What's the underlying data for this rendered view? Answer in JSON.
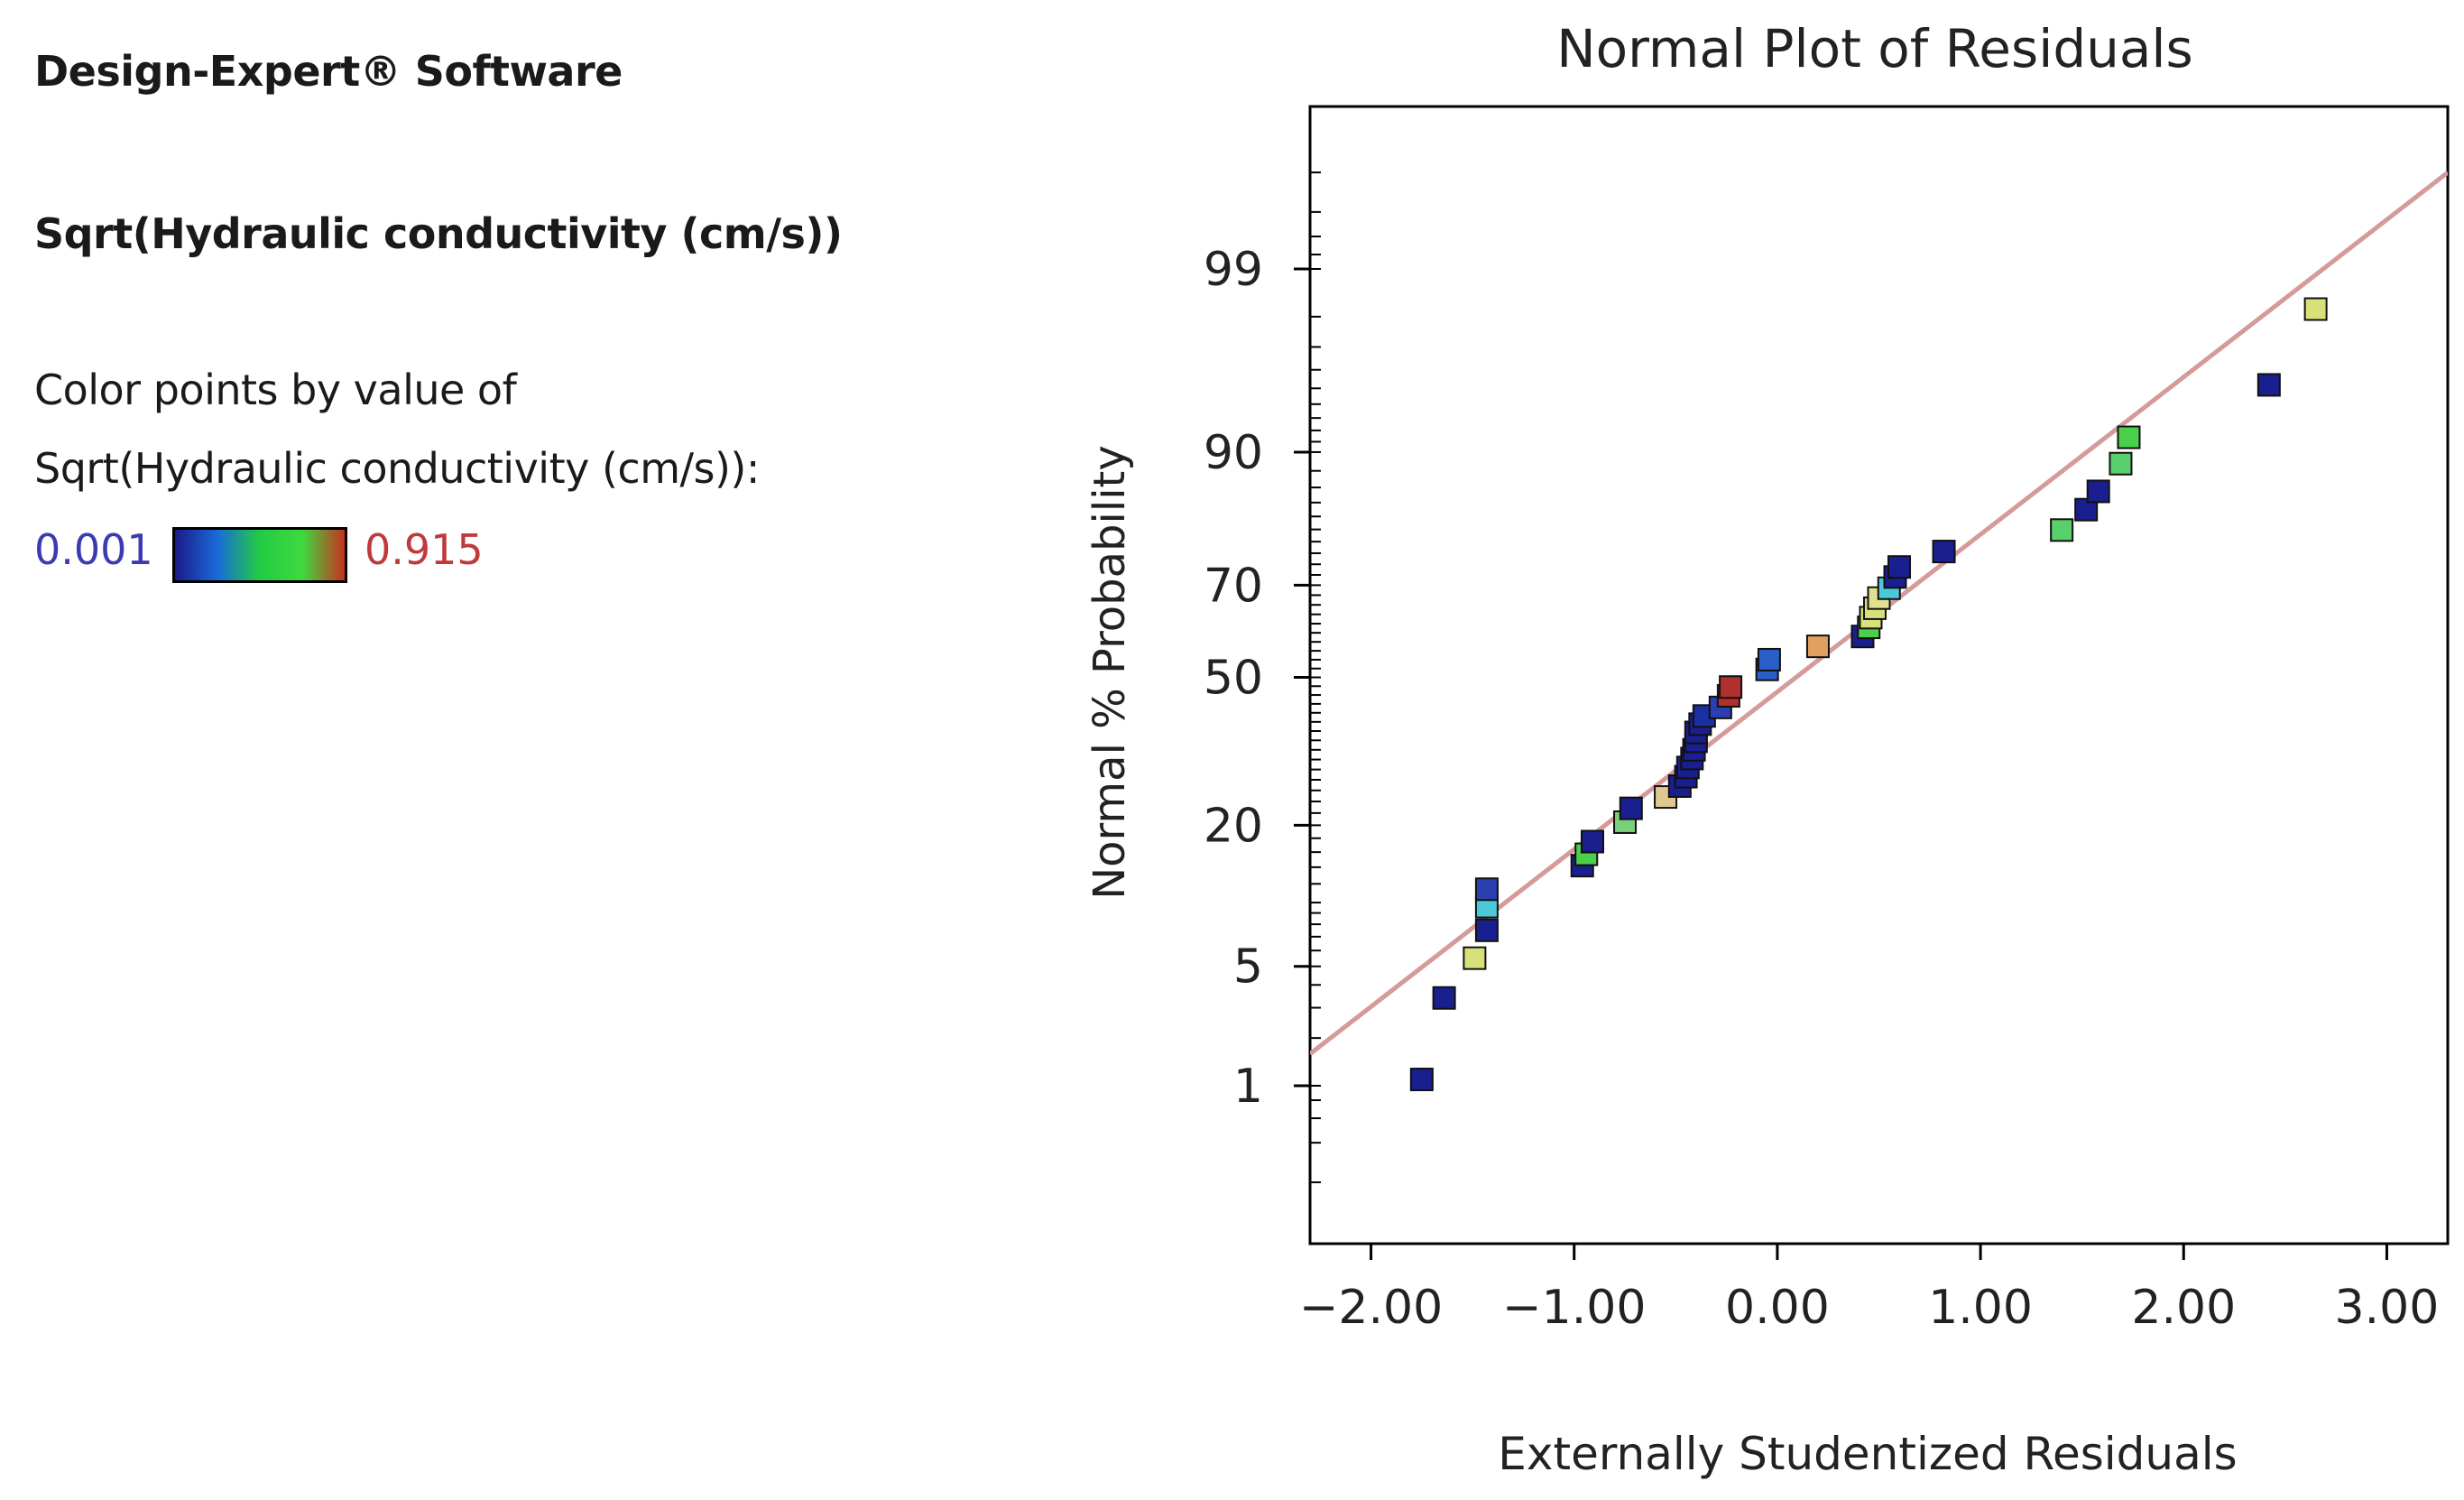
{
  "left_panel": {
    "software": "Design-Expert® Software",
    "response": "Sqrt(Hydraulic conductivity (cm/s))",
    "color_label_1": "Color points by value of",
    "color_label_2": "Sqrt(Hydraulic conductivity (cm/s)):",
    "legend_min": "0.001",
    "legend_max": "0.915",
    "legend_min_color": "#3b3bb0",
    "legend_max_color": "#c0393b",
    "gradient_colors": [
      "#1a1a8a",
      "#1a6ad8",
      "#22cc44",
      "#3fd93f",
      "#c83020"
    ]
  },
  "chart_data": {
    "type": "scatter",
    "title": "Normal Plot of Residuals",
    "xlabel": "Externally Studentized Residuals",
    "ylabel": "Normal % Probability",
    "xlim": [
      -2.3,
      3.3
    ],
    "x_ticks": [
      -2.0,
      -1.0,
      0.0,
      1.0,
      2.0,
      3.0
    ],
    "x_tick_labels": [
      "−2.00",
      "−1.00",
      "0.00",
      "1.00",
      "2.00",
      "3.00"
    ],
    "y_ticks": [
      1,
      5,
      20,
      50,
      70,
      90,
      99
    ],
    "y_tick_labels": [
      "1",
      "5",
      "20",
      "50",
      "70",
      "90",
      "99"
    ],
    "reference_line": {
      "x": [
        -2.3,
        3.3
      ],
      "probability": [
        1.6,
        99.8
      ],
      "color": "#d59a9a"
    },
    "series": [
      {
        "name": "runs",
        "points": [
          {
            "x": -1.75,
            "p": 1.1,
            "color": "#1a1f8f"
          },
          {
            "x": -1.64,
            "p": 3.4,
            "color": "#1a1f8f"
          },
          {
            "x": -1.49,
            "p": 5.5,
            "color": "#d8e07a"
          },
          {
            "x": -1.43,
            "p": 7.5,
            "color": "#1a1f8f"
          },
          {
            "x": -1.43,
            "p": 9.6,
            "color": "#4cc8d8"
          },
          {
            "x": -1.43,
            "p": 11.4,
            "color": "#2a3fb0"
          },
          {
            "x": -0.96,
            "p": 14.2,
            "color": "#1a1f8f"
          },
          {
            "x": -0.94,
            "p": 15.7,
            "color": "#4ad04a"
          },
          {
            "x": -0.91,
            "p": 17.5,
            "color": "#1a1f8f"
          },
          {
            "x": -0.75,
            "p": 20.5,
            "color": "#7ad07a"
          },
          {
            "x": -0.72,
            "p": 22.8,
            "color": "#1a1f8f"
          },
          {
            "x": -0.55,
            "p": 24.8,
            "color": "#e0c890"
          },
          {
            "x": -0.48,
            "p": 26.8,
            "color": "#1a1f8f"
          },
          {
            "x": -0.45,
            "p": 28.6,
            "color": "#1a1f8f"
          },
          {
            "x": -0.44,
            "p": 30.4,
            "color": "#1a1f8f"
          },
          {
            "x": -0.42,
            "p": 32.2,
            "color": "#1a1f8f"
          },
          {
            "x": -0.41,
            "p": 34.0,
            "color": "#1a1f8f"
          },
          {
            "x": -0.4,
            "p": 35.8,
            "color": "#1a1f8f"
          },
          {
            "x": -0.4,
            "p": 37.7,
            "color": "#1a1f8f"
          },
          {
            "x": -0.38,
            "p": 39.5,
            "color": "#1a1f8f"
          },
          {
            "x": -0.36,
            "p": 41.3,
            "color": "#1a2fa0"
          },
          {
            "x": -0.28,
            "p": 43.2,
            "color": "#2a3fb0"
          },
          {
            "x": -0.24,
            "p": 45.8,
            "color": "#b03030"
          },
          {
            "x": -0.23,
            "p": 47.8,
            "color": "#b03030"
          },
          {
            "x": -0.05,
            "p": 51.8,
            "color": "#2a5fc8"
          },
          {
            "x": -0.04,
            "p": 54.0,
            "color": "#2a5fc8"
          },
          {
            "x": 0.2,
            "p": 57.0,
            "color": "#e0a060"
          },
          {
            "x": 0.42,
            "p": 59.2,
            "color": "#1a1f8f"
          },
          {
            "x": 0.45,
            "p": 61.2,
            "color": "#4ad04a"
          },
          {
            "x": 0.46,
            "p": 63.3,
            "color": "#d8e07a"
          },
          {
            "x": 0.48,
            "p": 65.3,
            "color": "#d8e07a"
          },
          {
            "x": 0.5,
            "p": 67.4,
            "color": "#e0e090"
          },
          {
            "x": 0.55,
            "p": 69.4,
            "color": "#4cc8d8"
          },
          {
            "x": 0.58,
            "p": 71.6,
            "color": "#1a1f8f"
          },
          {
            "x": 0.6,
            "p": 73.5,
            "color": "#1a1f8f"
          },
          {
            "x": 0.82,
            "p": 76.3,
            "color": "#1a1f8f"
          },
          {
            "x": 1.4,
            "p": 79.9,
            "color": "#5ad06a"
          },
          {
            "x": 1.52,
            "p": 83.0,
            "color": "#1a1f8f"
          },
          {
            "x": 1.58,
            "p": 85.5,
            "color": "#1a1f8f"
          },
          {
            "x": 1.69,
            "p": 88.8,
            "color": "#5ad06a"
          },
          {
            "x": 1.73,
            "p": 91.4,
            "color": "#4ad04a"
          },
          {
            "x": 2.42,
            "p": 95.2,
            "color": "#1a1f8f"
          },
          {
            "x": 2.65,
            "p": 98.2,
            "color": "#d8e07a"
          }
        ]
      }
    ]
  }
}
